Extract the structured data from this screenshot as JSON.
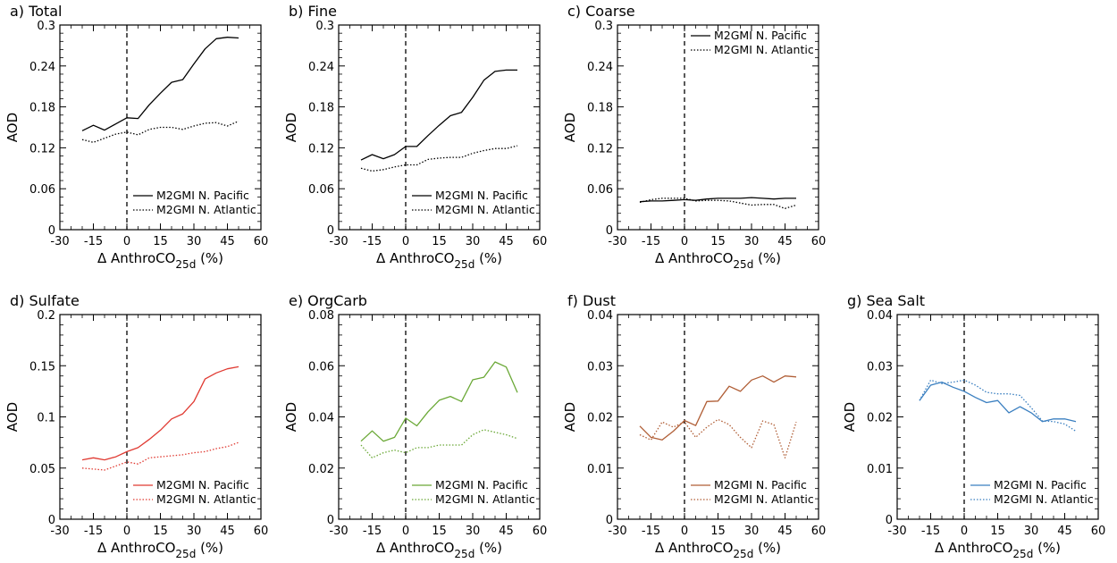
{
  "figure": {
    "background": "#ffffff",
    "ylabel": "AOD",
    "xlabel_main": "Δ AnthroCO",
    "xlabel_sub": "25d",
    "xlabel_tail": " (%)"
  },
  "chart_data": [
    {
      "type": "line",
      "title": "a) Total",
      "color": "#000000",
      "xlim": [
        -30,
        60
      ],
      "ylim": [
        0,
        0.3
      ],
      "xticks": [
        "-30",
        "-15",
        "0",
        "15",
        "30",
        "45",
        "60"
      ],
      "yticks": [
        "0",
        "0.06",
        "0.12",
        "0.18",
        "0.24",
        "0.3"
      ],
      "legend_position": "bottom-right",
      "x": [
        -20,
        -15,
        -10,
        -5,
        0,
        5,
        10,
        15,
        20,
        25,
        30,
        35,
        40,
        45,
        50
      ],
      "series": [
        {
          "name": "M2GMI N. Pacific",
          "style": "solid",
          "values": [
            0.145,
            0.153,
            0.146,
            0.155,
            0.164,
            0.163,
            0.183,
            0.2,
            0.216,
            0.22,
            0.243,
            0.265,
            0.28,
            0.282,
            0.281
          ]
        },
        {
          "name": "M2GMI N. Atlantic",
          "style": "dotted",
          "values": [
            0.132,
            0.128,
            0.134,
            0.14,
            0.143,
            0.139,
            0.147,
            0.15,
            0.15,
            0.147,
            0.152,
            0.156,
            0.157,
            0.152,
            0.159
          ]
        }
      ]
    },
    {
      "type": "line",
      "title": "b) Fine",
      "color": "#000000",
      "xlim": [
        -30,
        60
      ],
      "ylim": [
        0,
        0.3
      ],
      "xticks": [
        "-30",
        "-15",
        "0",
        "15",
        "30",
        "45",
        "60"
      ],
      "yticks": [
        "0",
        "0.06",
        "0.12",
        "0.18",
        "0.24",
        "0.3"
      ],
      "legend_position": "bottom-right",
      "x": [
        -20,
        -15,
        -10,
        -5,
        0,
        5,
        10,
        15,
        20,
        25,
        30,
        35,
        40,
        45,
        50
      ],
      "series": [
        {
          "name": "M2GMI N. Pacific",
          "style": "solid",
          "values": [
            0.102,
            0.11,
            0.104,
            0.11,
            0.122,
            0.122,
            0.138,
            0.153,
            0.167,
            0.172,
            0.194,
            0.219,
            0.232,
            0.234,
            0.234
          ]
        },
        {
          "name": "M2GMI N. Atlantic",
          "style": "dotted",
          "values": [
            0.09,
            0.086,
            0.088,
            0.092,
            0.095,
            0.095,
            0.103,
            0.105,
            0.106,
            0.106,
            0.112,
            0.116,
            0.119,
            0.119,
            0.123
          ]
        }
      ]
    },
    {
      "type": "line",
      "title": "c) Coarse",
      "color": "#000000",
      "xlim": [
        -30,
        60
      ],
      "ylim": [
        0,
        0.3
      ],
      "xticks": [
        "-30",
        "-15",
        "0",
        "15",
        "30",
        "45",
        "60"
      ],
      "yticks": [
        "0",
        "0.06",
        "0.12",
        "0.18",
        "0.24",
        "0.3"
      ],
      "legend_position": "top-right",
      "x": [
        -20,
        -15,
        -10,
        -5,
        0,
        5,
        10,
        15,
        20,
        25,
        30,
        35,
        40,
        45,
        50
      ],
      "series": [
        {
          "name": "M2GMI N. Pacific",
          "style": "solid",
          "values": [
            0.041,
            0.042,
            0.042,
            0.043,
            0.044,
            0.043,
            0.045,
            0.046,
            0.046,
            0.046,
            0.047,
            0.046,
            0.045,
            0.046,
            0.046
          ]
        },
        {
          "name": "M2GMI N. Atlantic",
          "style": "dotted",
          "values": [
            0.04,
            0.044,
            0.046,
            0.046,
            0.046,
            0.042,
            0.043,
            0.043,
            0.042,
            0.039,
            0.036,
            0.037,
            0.037,
            0.031,
            0.036
          ]
        }
      ]
    },
    {
      "type": "line",
      "title": "d) Sulfate",
      "color": "#e03a32",
      "xlim": [
        -30,
        60
      ],
      "ylim": [
        0,
        0.2
      ],
      "xticks": [
        "-30",
        "-15",
        "0",
        "15",
        "30",
        "45",
        "60"
      ],
      "yticks": [
        "0",
        "0.05",
        "0.1",
        "0.15",
        "0.2"
      ],
      "legend_position": "bottom-right",
      "x": [
        -20,
        -15,
        -10,
        -5,
        0,
        5,
        10,
        15,
        20,
        25,
        30,
        35,
        40,
        45,
        50
      ],
      "series": [
        {
          "name": "M2GMI N. Pacific",
          "style": "solid",
          "values": [
            0.058,
            0.06,
            0.058,
            0.061,
            0.066,
            0.07,
            0.078,
            0.087,
            0.098,
            0.103,
            0.115,
            0.137,
            0.143,
            0.147,
            0.149
          ]
        },
        {
          "name": "M2GMI N. Atlantic",
          "style": "dotted",
          "values": [
            0.05,
            0.049,
            0.048,
            0.052,
            0.056,
            0.054,
            0.06,
            0.061,
            0.062,
            0.063,
            0.065,
            0.066,
            0.069,
            0.071,
            0.075
          ]
        }
      ]
    },
    {
      "type": "line",
      "title": "e) OrgCarb",
      "color": "#6aa836",
      "xlim": [
        -30,
        60
      ],
      "ylim": [
        0,
        0.08
      ],
      "xticks": [
        "-30",
        "-15",
        "0",
        "15",
        "30",
        "45",
        "60"
      ],
      "yticks": [
        "0",
        "0.02",
        "0.04",
        "0.06",
        "0.08"
      ],
      "legend_position": "bottom-right",
      "x": [
        -20,
        -15,
        -10,
        -5,
        0,
        5,
        10,
        15,
        20,
        25,
        30,
        35,
        40,
        45,
        50
      ],
      "series": [
        {
          "name": "M2GMI N. Pacific",
          "style": "solid",
          "values": [
            0.0305,
            0.0345,
            0.0305,
            0.032,
            0.0395,
            0.0365,
            0.042,
            0.0465,
            0.048,
            0.046,
            0.0545,
            0.0555,
            0.0615,
            0.0595,
            0.0495
          ]
        },
        {
          "name": "M2GMI N. Atlantic",
          "style": "dotted",
          "values": [
            0.029,
            0.024,
            0.026,
            0.027,
            0.026,
            0.028,
            0.028,
            0.029,
            0.029,
            0.029,
            0.033,
            0.035,
            0.034,
            0.033,
            0.0315
          ]
        }
      ]
    },
    {
      "type": "line",
      "title": "f) Dust",
      "color": "#b05e36",
      "xlim": [
        -30,
        60
      ],
      "ylim": [
        0,
        0.04
      ],
      "xticks": [
        "-30",
        "-15",
        "0",
        "15",
        "30",
        "45",
        "60"
      ],
      "yticks": [
        "0",
        "0.01",
        "0.02",
        "0.03",
        "0.04"
      ],
      "legend_position": "bottom-right",
      "x": [
        -20,
        -15,
        -10,
        -5,
        0,
        5,
        10,
        15,
        20,
        25,
        30,
        35,
        40,
        45,
        50
      ],
      "series": [
        {
          "name": "M2GMI N. Pacific",
          "style": "solid",
          "values": [
            0.0182,
            0.016,
            0.0155,
            0.0172,
            0.0193,
            0.0183,
            0.023,
            0.0231,
            0.026,
            0.025,
            0.0272,
            0.028,
            0.0268,
            0.028,
            0.0278
          ]
        },
        {
          "name": "M2GMI N. Atlantic",
          "style": "dotted",
          "values": [
            0.0165,
            0.0155,
            0.019,
            0.018,
            0.019,
            0.016,
            0.018,
            0.0195,
            0.0185,
            0.016,
            0.014,
            0.0192,
            0.0185,
            0.012,
            0.019
          ]
        }
      ]
    },
    {
      "type": "line",
      "title": "g) Sea Salt",
      "color": "#3a7fc0",
      "xlim": [
        -30,
        60
      ],
      "ylim": [
        0,
        0.04
      ],
      "xticks": [
        "-30",
        "-15",
        "0",
        "15",
        "30",
        "45",
        "60"
      ],
      "yticks": [
        "0",
        "0.01",
        "0.02",
        "0.03",
        "0.04"
      ],
      "legend_position": "bottom-right",
      "x": [
        -20,
        -15,
        -10,
        -5,
        0,
        5,
        10,
        15,
        20,
        25,
        30,
        35,
        40,
        45,
        50
      ],
      "series": [
        {
          "name": "M2GMI N. Pacific",
          "style": "solid",
          "values": [
            0.0232,
            0.0262,
            0.0268,
            0.0258,
            0.025,
            0.0238,
            0.0228,
            0.0232,
            0.0208,
            0.022,
            0.0208,
            0.0191,
            0.0196,
            0.0196,
            0.0191
          ]
        },
        {
          "name": "M2GMI N. Atlantic",
          "style": "dotted",
          "values": [
            0.0232,
            0.0272,
            0.0265,
            0.0268,
            0.0272,
            0.0262,
            0.0248,
            0.0245,
            0.0245,
            0.0242,
            0.0218,
            0.0192,
            0.0191,
            0.0186,
            0.0172
          ]
        }
      ]
    }
  ]
}
